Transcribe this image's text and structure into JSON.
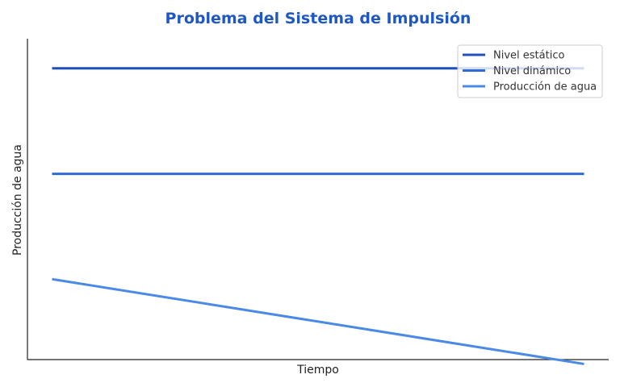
{
  "chart_data": {
    "type": "line",
    "title": "Problema del Sistema de Impulsión",
    "xlabel": "Tiempo",
    "ylabel": "Producción de agua",
    "x": [
      0,
      1
    ],
    "xlim": [
      0,
      1
    ],
    "ylim": [
      0.6,
      8.2
    ],
    "grid": false,
    "legend_position": "top-right",
    "series": [
      {
        "name": "Nivel estático",
        "x": [
          0,
          1
        ],
        "y": [
          7.5,
          7.5
        ],
        "color": "#1f4fbf"
      },
      {
        "name": "Nivel dinámico",
        "x": [
          0,
          1
        ],
        "y": [
          5.0,
          5.0
        ],
        "color": "#2f6bd6"
      },
      {
        "name": "Producción de agua",
        "x": [
          0,
          1
        ],
        "y": [
          2.5,
          0.5
        ],
        "color": "#4a8ae6"
      }
    ],
    "title_color": "#1f57c3"
  }
}
